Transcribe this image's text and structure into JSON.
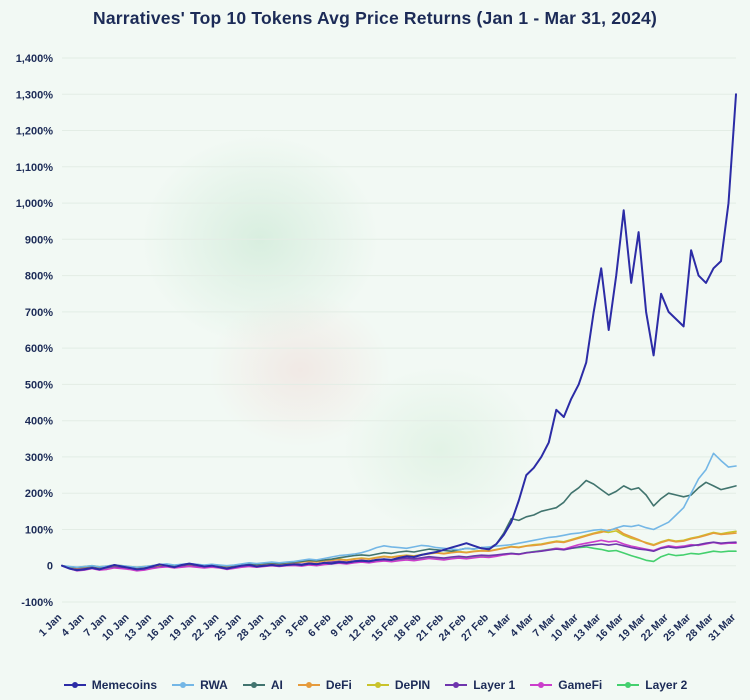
{
  "colors": {
    "background": "#f2f9f4",
    "text": "#1c2b57",
    "grid": "#e3ede5"
  },
  "chart_data": {
    "type": "line",
    "title": "Narratives' Top 10 Tokens Avg Price Returns (Jan 1 - Mar 31, 2024)",
    "xlabel": "",
    "ylabel": "",
    "ylim": [
      -100,
      1400
    ],
    "y_tick_step": 100,
    "y_tick_labels": [
      "1,400%",
      "1,300%",
      "1,200%",
      "1,100%",
      "1,000%",
      "900%",
      "800%",
      "700%",
      "600%",
      "500%",
      "400%",
      "300%",
      "200%",
      "100%",
      "0",
      "-100%"
    ],
    "grid": "horizontal",
    "legend_position": "bottom",
    "tick_every": 3,
    "x_labels": [
      "1 Jan",
      "4 Jan",
      "7 Jan",
      "10 Jan",
      "13 Jan",
      "16 Jan",
      "19 Jan",
      "22 Jan",
      "25 Jan",
      "28 Jan",
      "31 Jan",
      "3 Feb",
      "6 Feb",
      "9 Feb",
      "12 Feb",
      "15 Feb",
      "18 Feb",
      "21 Feb",
      "24 Feb",
      "27 Feb",
      "1 Mar",
      "4 Mar",
      "7 Mar",
      "10 Mar",
      "13 Mar",
      "16 Mar",
      "19 Mar",
      "22 Mar",
      "25 Mar",
      "28 Mar",
      "31 Mar"
    ],
    "series": [
      {
        "name": "Memecoins",
        "color": "#2c2ca6",
        "values": [
          0,
          -8,
          -12,
          -10,
          -6,
          -10,
          -4,
          2,
          -2,
          -6,
          -10,
          -8,
          -2,
          4,
          0,
          -4,
          2,
          6,
          2,
          -2,
          0,
          -4,
          -8,
          -4,
          0,
          2,
          -2,
          0,
          2,
          0,
          2,
          4,
          2,
          6,
          4,
          8,
          6,
          10,
          8,
          12,
          14,
          12,
          16,
          18,
          16,
          22,
          26,
          24,
          30,
          34,
          38,
          44,
          50,
          56,
          62,
          55,
          48,
          45,
          60,
          85,
          120,
          180,
          250,
          270,
          300,
          340,
          430,
          410,
          460,
          500,
          560,
          700,
          820,
          650,
          800,
          980,
          780,
          920,
          700,
          580,
          750,
          700,
          680,
          660,
          870,
          800,
          780,
          820,
          840,
          1000,
          1300
        ]
      },
      {
        "name": "RWA",
        "color": "#74b7e6",
        "values": [
          0,
          -2,
          -4,
          -2,
          0,
          -3,
          -1,
          2,
          0,
          -2,
          -4,
          -2,
          0,
          3,
          5,
          2,
          4,
          6,
          4,
          2,
          4,
          2,
          0,
          2,
          5,
          8,
          6,
          8,
          10,
          8,
          10,
          12,
          15,
          18,
          16,
          20,
          24,
          28,
          30,
          32,
          36,
          42,
          50,
          55,
          52,
          50,
          48,
          52,
          56,
          54,
          50,
          48,
          46,
          44,
          48,
          46,
          50,
          52,
          54,
          56,
          58,
          62,
          66,
          70,
          74,
          78,
          80,
          84,
          88,
          90,
          94,
          98,
          100,
          96,
          104,
          110,
          108,
          112,
          105,
          100,
          110,
          120,
          140,
          160,
          200,
          240,
          265,
          310,
          290,
          272,
          275
        ]
      },
      {
        "name": "AI",
        "color": "#41746e",
        "values": [
          0,
          -3,
          -5,
          -3,
          -1,
          -4,
          -2,
          1,
          -1,
          -3,
          -5,
          -3,
          -1,
          2,
          4,
          1,
          3,
          5,
          3,
          1,
          3,
          1,
          -1,
          1,
          4,
          6,
          4,
          6,
          8,
          6,
          8,
          10,
          12,
          15,
          13,
          16,
          18,
          22,
          25,
          28,
          30,
          28,
          32,
          36,
          34,
          38,
          40,
          38,
          42,
          46,
          44,
          42,
          40,
          44,
          48,
          46,
          50,
          48,
          60,
          90,
          130,
          125,
          135,
          140,
          150,
          155,
          160,
          175,
          200,
          215,
          235,
          225,
          210,
          195,
          205,
          220,
          210,
          215,
          195,
          165,
          185,
          200,
          195,
          190,
          195,
          215,
          230,
          220,
          210,
          215,
          220
        ]
      },
      {
        "name": "DeFi",
        "color": "#e69b3c",
        "values": [
          0,
          -4,
          -6,
          -4,
          -2,
          -5,
          -3,
          0,
          -2,
          -4,
          -6,
          -4,
          -2,
          1,
          3,
          0,
          2,
          4,
          2,
          0,
          2,
          0,
          -2,
          0,
          3,
          5,
          3,
          5,
          7,
          5,
          7,
          8,
          10,
          12,
          10,
          13,
          15,
          17,
          15,
          18,
          20,
          18,
          22,
          25,
          23,
          26,
          28,
          26,
          30,
          33,
          35,
          33,
          36,
          38,
          36,
          39,
          41,
          40,
          44,
          48,
          52,
          50,
          54,
          56,
          58,
          62,
          66,
          64,
          70,
          76,
          82,
          88,
          92,
          98,
          102,
          88,
          80,
          72,
          62,
          56,
          64,
          70,
          66,
          68,
          74,
          78,
          84,
          90,
          86,
          88,
          90
        ]
      },
      {
        "name": "DePIN",
        "color": "#c9c32b",
        "values": [
          0,
          -3,
          -5,
          -2,
          0,
          -3,
          -1,
          2,
          0,
          -2,
          -4,
          -2,
          0,
          2,
          4,
          1,
          3,
          5,
          3,
          1,
          3,
          1,
          -1,
          1,
          4,
          6,
          4,
          6,
          8,
          6,
          8,
          9,
          11,
          13,
          11,
          14,
          16,
          18,
          16,
          19,
          21,
          19,
          23,
          26,
          24,
          27,
          29,
          27,
          31,
          34,
          36,
          34,
          37,
          39,
          37,
          40,
          42,
          41,
          45,
          49,
          53,
          51,
          55,
          58,
          60,
          64,
          68,
          66,
          72,
          78,
          84,
          90,
          95,
          92,
          96,
          84,
          76,
          70,
          64,
          58,
          66,
          72,
          68,
          70,
          76,
          80,
          86,
          92,
          88,
          92,
          95
        ]
      },
      {
        "name": "Layer 1",
        "color": "#6f35ad",
        "values": [
          0,
          -5,
          -8,
          -6,
          -4,
          -7,
          -5,
          -2,
          -4,
          -6,
          -8,
          -6,
          -4,
          -1,
          1,
          -2,
          0,
          2,
          0,
          -2,
          0,
          -2,
          -4,
          -2,
          1,
          3,
          1,
          3,
          5,
          3,
          5,
          6,
          4,
          7,
          5,
          8,
          10,
          12,
          10,
          13,
          15,
          13,
          16,
          18,
          16,
          19,
          21,
          19,
          22,
          25,
          23,
          21,
          24,
          26,
          24,
          27,
          29,
          28,
          30,
          32,
          34,
          32,
          36,
          38,
          40,
          43,
          46,
          44,
          48,
          52,
          56,
          58,
          60,
          57,
          60,
          55,
          50,
          46,
          44,
          40,
          48,
          52,
          49,
          51,
          55,
          58,
          62,
          65,
          62,
          64,
          65
        ]
      },
      {
        "name": "GameFi",
        "color": "#cb3ecb",
        "values": [
          0,
          -8,
          -14,
          -12,
          -8,
          -12,
          -10,
          -6,
          -8,
          -10,
          -14,
          -12,
          -8,
          -5,
          -3,
          -6,
          -4,
          -2,
          -4,
          -6,
          -4,
          -6,
          -10,
          -7,
          -4,
          -2,
          -4,
          -2,
          0,
          -2,
          0,
          1,
          -1,
          2,
          0,
          3,
          5,
          7,
          5,
          8,
          10,
          8,
          11,
          13,
          11,
          14,
          16,
          14,
          17,
          20,
          18,
          16,
          19,
          21,
          19,
          22,
          24,
          23,
          26,
          30,
          33,
          31,
          35,
          38,
          41,
          44,
          48,
          46,
          52,
          58,
          62,
          66,
          70,
          66,
          68,
          60,
          54,
          50,
          46,
          42,
          50,
          55,
          52,
          54,
          58,
          56,
          60,
          64,
          60,
          62,
          62
        ]
      },
      {
        "name": "Layer 2",
        "color": "#44d06e",
        "values": [
          0,
          -6,
          -10,
          -8,
          -5,
          -9,
          -7,
          -4,
          -6,
          -8,
          -11,
          -9,
          -6,
          -3,
          -1,
          -4,
          -2,
          0,
          -2,
          -4,
          -2,
          -4,
          -7,
          -5,
          -2,
          0,
          -2,
          0,
          2,
          0,
          2,
          3,
          1,
          4,
          2,
          5,
          7,
          9,
          7,
          10,
          12,
          10,
          13,
          15,
          13,
          16,
          18,
          16,
          19,
          22,
          20,
          18,
          21,
          23,
          21,
          24,
          26,
          25,
          28,
          31,
          34,
          32,
          36,
          39,
          42,
          45,
          48,
          45,
          48,
          50,
          52,
          48,
          45,
          40,
          42,
          35,
          28,
          22,
          15,
          12,
          25,
          32,
          28,
          30,
          34,
          32,
          36,
          40,
          38,
          40,
          40
        ]
      }
    ]
  }
}
